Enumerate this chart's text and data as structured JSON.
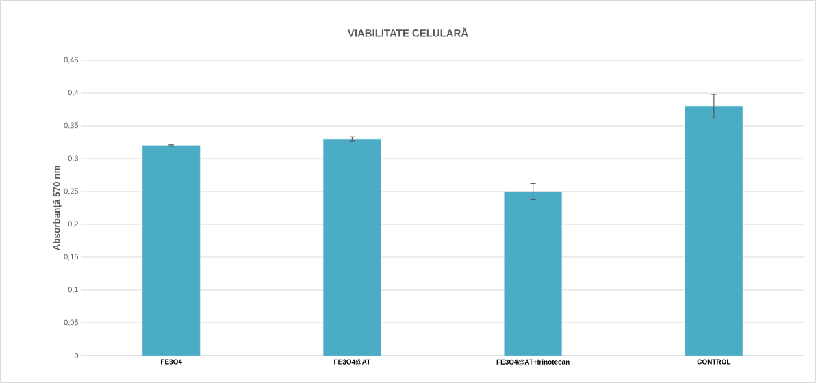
{
  "chart_data": {
    "type": "bar",
    "title": "VIABILITATE CELULARĂ",
    "ylabel": "Absorbanță 570 nm",
    "categories": [
      "FE3O4",
      "FE3O4@AT",
      "FE3O4@AT+Irinotecan",
      "CONTROL"
    ],
    "values": [
      0.32,
      0.33,
      0.25,
      0.38
    ],
    "errors": [
      0.001,
      0.003,
      0.012,
      0.018
    ],
    "color": "#4bacc6",
    "ylim": [
      0,
      0.45
    ],
    "yticks": [
      0,
      {
        "value": 0.05,
        "label": "0,05"
      },
      {
        "value": 0.1,
        "label": "0,1"
      },
      {
        "value": 0.15,
        "label": "0,15"
      },
      {
        "value": 0.2,
        "label": "0,2"
      },
      {
        "value": 0.25,
        "label": "0,25"
      },
      {
        "value": 0.3,
        "label": "0,3"
      },
      {
        "value": 0.35,
        "label": "0,35"
      },
      {
        "value": 0.4,
        "label": "0,4"
      },
      {
        "value": 0.45,
        "label": "0,45"
      }
    ],
    "grid": "y"
  }
}
